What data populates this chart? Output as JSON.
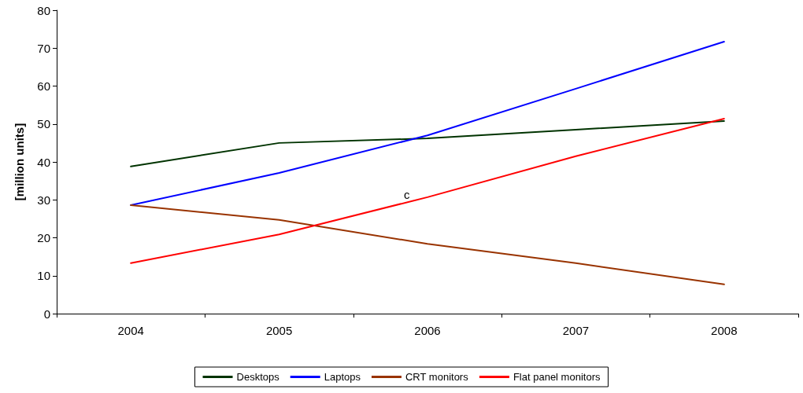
{
  "chart_data": {
    "type": "line",
    "ylabel": "[million units]",
    "categories": [
      "2004",
      "2005",
      "2006",
      "2007",
      "2008"
    ],
    "series": [
      {
        "name": "Desktops",
        "color": "#003300",
        "values": [
          38.8,
          45.0,
          46.2,
          48.5,
          50.8
        ]
      },
      {
        "name": "Laptops",
        "color": "#0000ff",
        "values": [
          28.6,
          37.1,
          47.0,
          59.3,
          71.7
        ]
      },
      {
        "name": "CRT monitors",
        "color": "#993300",
        "values": [
          28.6,
          24.7,
          18.4,
          13.3,
          7.7
        ]
      },
      {
        "name": "Flat panel monitors",
        "color": "#ff0000",
        "values": [
          13.3,
          20.9,
          30.7,
          41.5,
          51.4
        ]
      }
    ],
    "ylim": [
      0,
      80
    ],
    "yticks": [
      0,
      10,
      20,
      30,
      40,
      50,
      60,
      70,
      80
    ],
    "grid": false,
    "legend": "bottom",
    "marker": "none",
    "line_style": "solid",
    "annotations": [
      "c"
    ]
  }
}
